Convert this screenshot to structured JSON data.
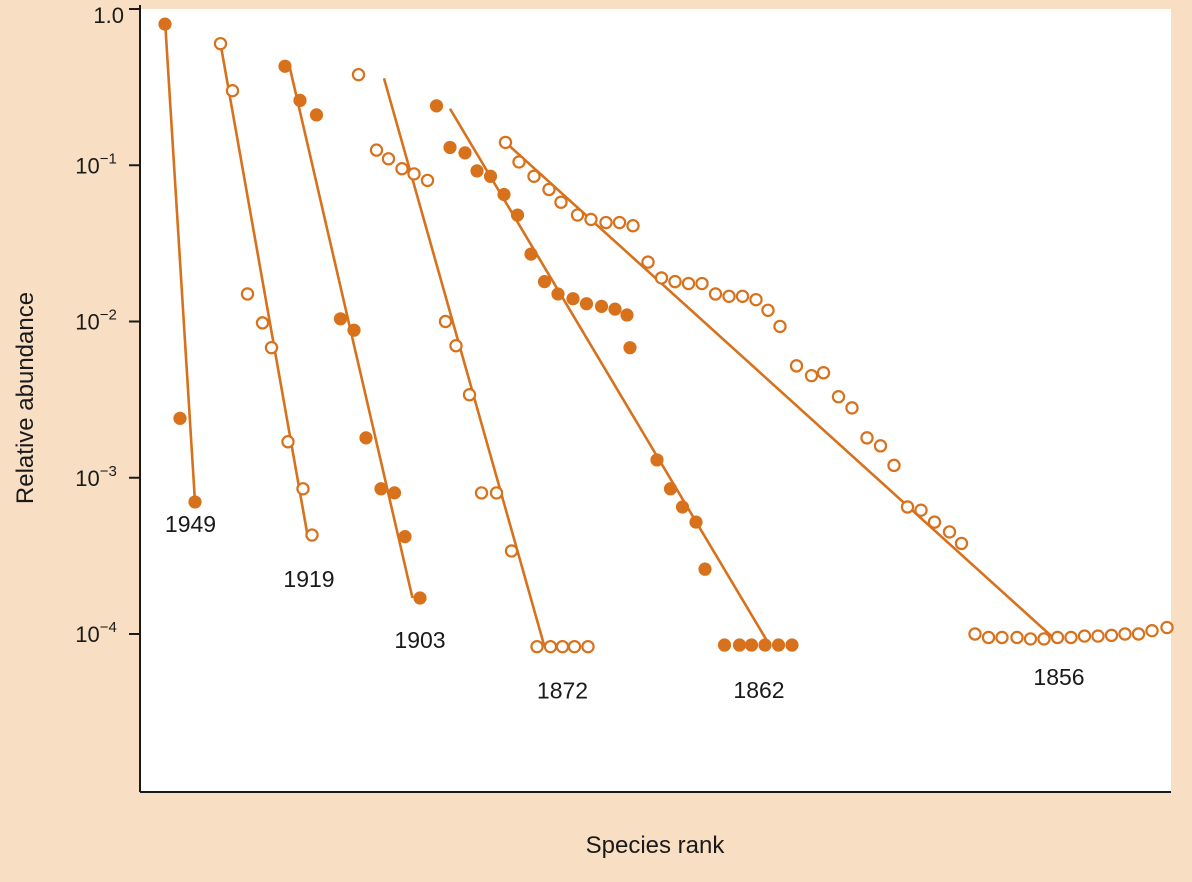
{
  "colors": {
    "background": "#f8dfc4",
    "plot_area": "#ffffff",
    "series": "#d8711c",
    "axis": "#1a1a1a"
  },
  "chart_data": {
    "type": "scatter",
    "title": "",
    "xlabel": "Species rank",
    "ylabel": "Relative abundance",
    "yscale": "log",
    "ylim": [
      2e-05,
      1.0
    ],
    "xlim": [
      0,
      70
    ],
    "y_ticks": [
      {
        "value": 1.0,
        "base": "1.0",
        "exp": ""
      },
      {
        "value": 0.1,
        "base": "10",
        "exp": "−1"
      },
      {
        "value": 0.01,
        "base": "10",
        "exp": "−2"
      },
      {
        "value": 0.001,
        "base": "10",
        "exp": "−3"
      },
      {
        "value": 0.0001,
        "base": "10",
        "exp": "−4"
      }
    ],
    "grid": false,
    "legend": "none",
    "series": [
      {
        "name": "1949",
        "marker": "filled",
        "points": [
          [
            1,
            0.8
          ],
          [
            2,
            0.0024
          ],
          [
            3,
            0.0007
          ]
        ],
        "fit": [
          [
            1.0,
            0.85
          ],
          [
            3.0,
            0.0007
          ]
        ]
      },
      {
        "name": "1919",
        "marker": "open",
        "points": [
          [
            4.7,
            0.6
          ],
          [
            5.5,
            0.3
          ],
          [
            6.5,
            0.015
          ],
          [
            7.5,
            0.0098
          ],
          [
            8.1,
            0.0068
          ],
          [
            9.2,
            0.0017
          ],
          [
            10.2,
            0.00085
          ],
          [
            10.8,
            0.00043
          ]
        ],
        "fit": [
          [
            4.7,
            0.6
          ],
          [
            10.5,
            0.00043
          ]
        ]
      },
      {
        "name": "1903",
        "marker": "filled",
        "points": [
          [
            9.0,
            0.43
          ],
          [
            10.0,
            0.26
          ],
          [
            11.1,
            0.21
          ],
          [
            12.7,
            0.0104
          ],
          [
            13.6,
            0.0088
          ],
          [
            14.4,
            0.0018
          ],
          [
            15.4,
            0.00085
          ],
          [
            16.3,
            0.0008
          ],
          [
            17.0,
            0.00042
          ],
          [
            18.0,
            0.00017
          ]
        ],
        "fit": [
          [
            9.3,
            0.43
          ],
          [
            17.5,
            0.00017
          ]
        ]
      },
      {
        "name": "1872",
        "marker": "open",
        "points": [
          [
            13.9,
            0.38
          ],
          [
            15.1,
            0.125
          ],
          [
            15.9,
            0.11
          ],
          [
            16.8,
            0.095
          ],
          [
            17.6,
            0.088
          ],
          [
            18.5,
            0.08
          ],
          [
            19.7,
            0.01
          ],
          [
            20.4,
            0.007
          ],
          [
            21.3,
            0.0034
          ],
          [
            22.1,
            0.0008
          ],
          [
            23.1,
            0.0008
          ],
          [
            24.1,
            0.00034
          ],
          [
            25.8,
            8.3e-05
          ],
          [
            26.7,
            8.3e-05
          ],
          [
            27.5,
            8.3e-05
          ],
          [
            28.3,
            8.3e-05
          ],
          [
            29.2,
            8.3e-05
          ]
        ],
        "fit": [
          [
            15.6,
            0.36
          ],
          [
            26.3,
            8.3e-05
          ]
        ]
      },
      {
        "name": "1862",
        "marker": "filled",
        "points": [
          [
            19.1,
            0.24
          ],
          [
            20.0,
            0.13
          ],
          [
            21.0,
            0.12
          ],
          [
            21.8,
            0.092
          ],
          [
            22.7,
            0.085
          ],
          [
            23.6,
            0.065
          ],
          [
            24.5,
            0.048
          ],
          [
            25.4,
            0.027
          ],
          [
            26.3,
            0.018
          ],
          [
            27.2,
            0.015
          ],
          [
            28.2,
            0.014
          ],
          [
            29.1,
            0.013
          ],
          [
            30.1,
            0.0125
          ],
          [
            31.0,
            0.012
          ],
          [
            31.8,
            0.011
          ],
          [
            32.0,
            0.0068
          ],
          [
            33.8,
            0.0013
          ],
          [
            34.7,
            0.00085
          ],
          [
            35.5,
            0.00065
          ],
          [
            36.4,
            0.00052
          ],
          [
            37.0,
            0.00026
          ],
          [
            38.3,
            8.5e-05
          ],
          [
            39.3,
            8.5e-05
          ],
          [
            40.1,
            8.5e-05
          ],
          [
            41.0,
            8.5e-05
          ],
          [
            41.9,
            8.5e-05
          ],
          [
            42.8,
            8.5e-05
          ]
        ],
        "fit": [
          [
            20.0,
            0.23
          ],
          [
            41.3,
            8.5e-05
          ]
        ]
      },
      {
        "name": "1856",
        "marker": "open",
        "points": [
          [
            23.7,
            0.14
          ],
          [
            24.6,
            0.105
          ],
          [
            25.6,
            0.085
          ],
          [
            26.6,
            0.07
          ],
          [
            27.4,
            0.058
          ],
          [
            28.5,
            0.048
          ],
          [
            29.4,
            0.045
          ],
          [
            30.4,
            0.043
          ],
          [
            31.3,
            0.043
          ],
          [
            32.2,
            0.041
          ],
          [
            33.2,
            0.024
          ],
          [
            34.1,
            0.019
          ],
          [
            35.0,
            0.018
          ],
          [
            35.9,
            0.0175
          ],
          [
            36.8,
            0.0175
          ],
          [
            37.7,
            0.015
          ],
          [
            38.6,
            0.0145
          ],
          [
            39.5,
            0.0145
          ],
          [
            40.4,
            0.0138
          ],
          [
            41.2,
            0.0118
          ],
          [
            42.0,
            0.0093
          ],
          [
            43.1,
            0.0052
          ],
          [
            44.1,
            0.0045
          ],
          [
            44.9,
            0.0047
          ],
          [
            45.9,
            0.0033
          ],
          [
            46.8,
            0.0028
          ],
          [
            47.8,
            0.0018
          ],
          [
            48.7,
            0.0016
          ],
          [
            49.6,
            0.0012
          ],
          [
            50.5,
            0.00065
          ],
          [
            51.4,
            0.00062
          ],
          [
            52.3,
            0.00052
          ],
          [
            53.3,
            0.00045
          ],
          [
            54.1,
            0.00038
          ],
          [
            55.0,
            0.0001
          ],
          [
            55.9,
            9.5e-05
          ],
          [
            56.8,
            9.5e-05
          ],
          [
            57.8,
            9.5e-05
          ],
          [
            58.7,
            9.3e-05
          ],
          [
            59.6,
            9.3e-05
          ],
          [
            60.5,
            9.5e-05
          ],
          [
            61.4,
            9.5e-05
          ],
          [
            62.3,
            9.7e-05
          ],
          [
            63.2,
            9.7e-05
          ],
          [
            64.1,
            9.8e-05
          ],
          [
            65.0,
            0.0001
          ],
          [
            65.9,
            0.0001
          ],
          [
            66.8,
            0.000105
          ],
          [
            67.8,
            0.00011
          ]
        ],
        "fit": [
          [
            23.7,
            0.14
          ],
          [
            60.3,
            9.3e-05
          ]
        ]
      }
    ]
  }
}
